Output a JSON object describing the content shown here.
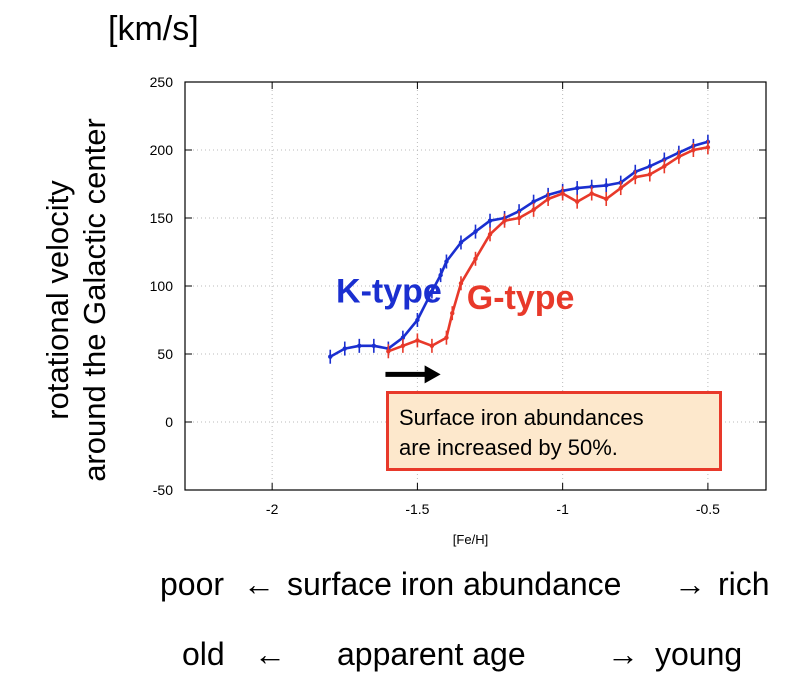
{
  "unit_label": "[km/s]",
  "ylabel_lines": [
    "rotational velocity",
    "around the Galactic center"
  ],
  "callout_lines": [
    "Surface iron abundances",
    "are increased by 50%."
  ],
  "axis_row": {
    "left": "poor",
    "left_arrow": "←",
    "middle": "surface iron abundance",
    "right_arrow": "→",
    "right": "rich"
  },
  "age_row": {
    "left": "old",
    "left_arrow": "←",
    "middle": "apparent age",
    "right_arrow": "→",
    "right": "young"
  },
  "chart_data": {
    "type": "line",
    "xlabel": "[Fe/H]",
    "ylabel": "",
    "xlim": [
      -2.3,
      -0.3
    ],
    "ylim": [
      -50,
      250
    ],
    "xticks": [
      -2,
      -1.5,
      -1,
      -0.5
    ],
    "xtick_labels": [
      "-2",
      "-1.5",
      "-1",
      "-0.5"
    ],
    "yticks": [
      -50,
      0,
      50,
      100,
      150,
      200,
      250
    ],
    "ytick_labels": [
      "-50",
      "0",
      "50",
      "100",
      "150",
      "200",
      "250"
    ],
    "grid": true,
    "series": [
      {
        "name": "K-type",
        "color": "#1a2fd0",
        "label_pos": [
          -1.78,
          88
        ],
        "x": [
          -1.8,
          -1.75,
          -1.7,
          -1.65,
          -1.6,
          -1.55,
          -1.5,
          -1.45,
          -1.42,
          -1.4,
          -1.35,
          -1.3,
          -1.25,
          -1.2,
          -1.15,
          -1.1,
          -1.05,
          -1.0,
          -0.95,
          -0.9,
          -0.85,
          -0.8,
          -0.75,
          -0.7,
          -0.65,
          -0.6,
          -0.55,
          -0.5
        ],
        "y": [
          48,
          54,
          56,
          56,
          54,
          62,
          75,
          96,
          108,
          118,
          132,
          140,
          148,
          150,
          155,
          162,
          167,
          170,
          172,
          173,
          174,
          176,
          184,
          188,
          193,
          198,
          203,
          206
        ]
      },
      {
        "name": "G-type",
        "color": "#e8392a",
        "label_pos": [
          -1.33,
          83
        ],
        "x": [
          -1.6,
          -1.55,
          -1.5,
          -1.45,
          -1.4,
          -1.38,
          -1.35,
          -1.3,
          -1.25,
          -1.2,
          -1.15,
          -1.1,
          -1.05,
          -1.0,
          -0.95,
          -0.9,
          -0.85,
          -0.8,
          -0.75,
          -0.7,
          -0.65,
          -0.6,
          -0.55,
          -0.5
        ],
        "y": [
          52,
          56,
          60,
          56,
          62,
          80,
          102,
          120,
          138,
          148,
          150,
          156,
          164,
          168,
          162,
          168,
          164,
          172,
          180,
          182,
          188,
          195,
          200,
          202
        ]
      }
    ],
    "annotations": [
      {
        "type": "arrow",
        "from": [
          -1.61,
          35
        ],
        "to": [
          -1.42,
          35
        ],
        "color": "#000000"
      }
    ]
  }
}
